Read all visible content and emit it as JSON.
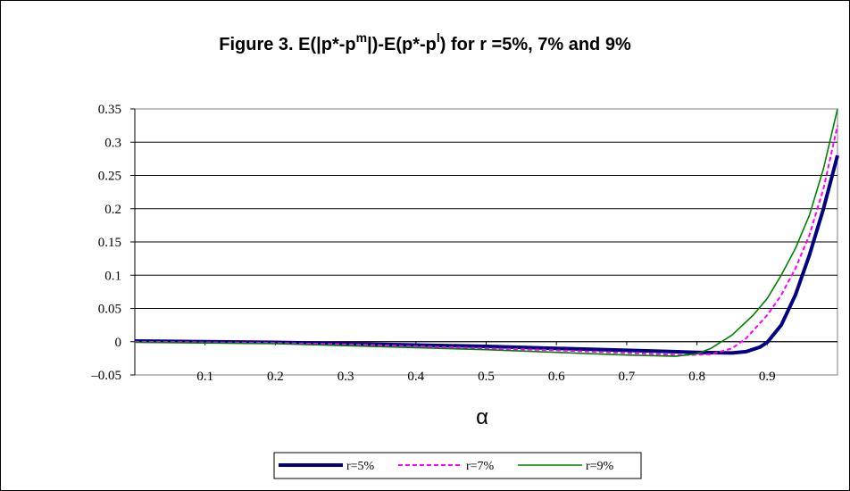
{
  "chart_data": {
    "type": "line",
    "title": {
      "main": "Figure 3.  E(|p*-p",
      "sup_m": "m",
      "middle": "|)-E(p*-p",
      "sup_l": "l",
      "tail": ") for r =5%, 7% and 9%"
    },
    "xlabel": "α",
    "ylabel": "",
    "xlim": [
      0,
      1
    ],
    "ylim": [
      -0.05,
      0.35
    ],
    "x_ticks": [
      "0.1",
      "0.2",
      "0.3",
      "0.4",
      "0.5",
      "0.6",
      "0.7",
      "0.8",
      "0.9"
    ],
    "y_ticks": [
      "–0.05",
      "0",
      "0.05",
      "0.1",
      "0.15",
      "0.2",
      "0.25",
      "0.3",
      "0.35"
    ],
    "grid": "horizontal",
    "legend_position": "bottom",
    "series": [
      {
        "name": "r=5%",
        "color": "#000080",
        "style": "solid-thick",
        "x": [
          0,
          0.1,
          0.2,
          0.3,
          0.4,
          0.5,
          0.6,
          0.7,
          0.8,
          0.85,
          0.87,
          0.89,
          0.9,
          0.92,
          0.94,
          0.96,
          0.98,
          1.0
        ],
        "y": [
          0.001,
          0.0,
          -0.001,
          -0.003,
          -0.005,
          -0.007,
          -0.01,
          -0.013,
          -0.016,
          -0.017,
          -0.015,
          -0.008,
          -0.001,
          0.025,
          0.07,
          0.13,
          0.2,
          0.28
        ]
      },
      {
        "name": "r=7%",
        "color": "#ff00ff",
        "style": "dashed",
        "x": [
          0,
          0.1,
          0.2,
          0.3,
          0.4,
          0.5,
          0.6,
          0.7,
          0.78,
          0.82,
          0.85,
          0.87,
          0.9,
          0.92,
          0.94,
          0.96,
          0.98,
          1.0
        ],
        "y": [
          0.0,
          -0.001,
          -0.002,
          -0.004,
          -0.007,
          -0.01,
          -0.013,
          -0.017,
          -0.02,
          -0.019,
          -0.01,
          0.005,
          0.04,
          0.07,
          0.11,
          0.16,
          0.23,
          0.325
        ]
      },
      {
        "name": "r=9%",
        "color": "#008000",
        "style": "solid",
        "x": [
          0,
          0.1,
          0.2,
          0.3,
          0.4,
          0.5,
          0.6,
          0.7,
          0.77,
          0.8,
          0.82,
          0.85,
          0.88,
          0.9,
          0.92,
          0.94,
          0.96,
          0.98,
          1.0
        ],
        "y": [
          -0.001,
          -0.002,
          -0.003,
          -0.006,
          -0.009,
          -0.012,
          -0.016,
          -0.02,
          -0.022,
          -0.018,
          -0.01,
          0.01,
          0.04,
          0.065,
          0.1,
          0.14,
          0.19,
          0.26,
          0.35
        ]
      }
    ]
  }
}
